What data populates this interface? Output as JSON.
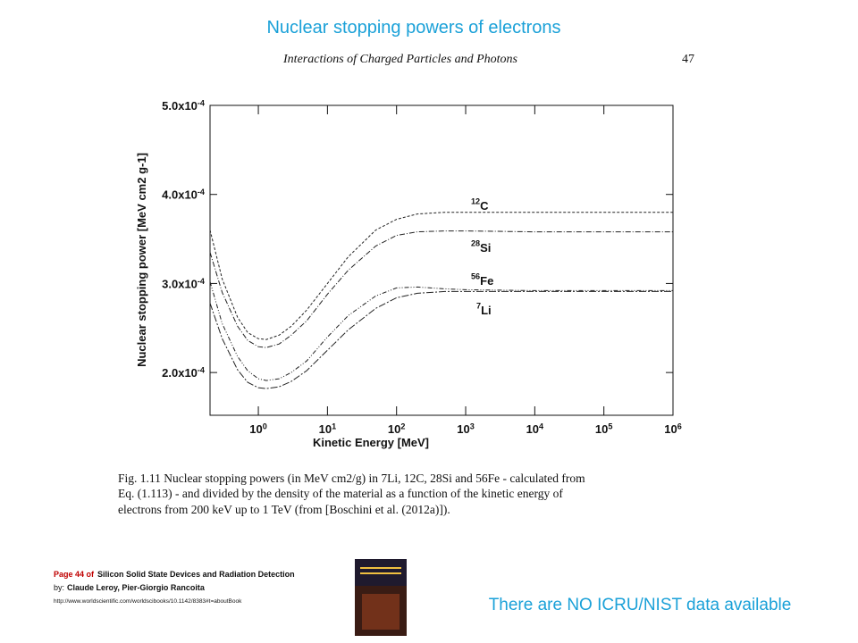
{
  "slide": {
    "title": "Nuclear stopping powers  of electrons",
    "running_head": "Interactions of Charged Particles and Photons",
    "page_number": "47",
    "caption": [
      "Fig. 1.11   Nuclear stopping powers (in MeV cm2/g) in 7Li, 12C, 28Si and 56Fe - calculated from",
      "Eq. (1.113) - and divided by the density of the material as a function of the kinetic energy of",
      "electrons from 200 keV up to 1 TeV (from [Boschini et al. (2012a)])."
    ],
    "source_page": "Page 44 of",
    "source_book": "Silicon Solid State Devices and Radiation Detection",
    "by_label": "by:",
    "authors": "Claude Leroy, Pier-Giorgio Rancoita",
    "url": "http://www.worldscientific.com/worldscibooks/10.1142/8383#t=aboutBook",
    "note": "There are NO ICRU/NIST data available"
  },
  "chart_data": {
    "type": "line",
    "xlabel": "Kinetic Energy   [MeV]",
    "ylabel": "Nuclear stopping power  [MeV cm2 g-1]",
    "x": [
      0.2,
      0.3,
      0.5,
      0.7,
      1,
      1.3,
      2,
      3,
      5,
      10,
      20,
      50,
      100,
      200,
      500,
      1000,
      10000,
      100000,
      1000000
    ],
    "xscale": "log",
    "xlim": [
      0.2,
      1000000
    ],
    "xticks": [
      {
        "value": 1,
        "label": "100"
      },
      {
        "value": 10,
        "label": "101"
      },
      {
        "value": 100,
        "label": "102"
      },
      {
        "value": 1000,
        "label": "103"
      },
      {
        "value": 10000,
        "label": "104"
      },
      {
        "value": 100000,
        "label": "105"
      },
      {
        "value": 1000000,
        "label": "106"
      }
    ],
    "ylim": [
      0.000152,
      0.0005
    ],
    "yticks": [
      {
        "value": 0.0002,
        "label": "2.0x10-4"
      },
      {
        "value": 0.0003,
        "label": "3.0x10-4"
      },
      {
        "value": 0.0004,
        "label": "4.0x10-4"
      },
      {
        "value": 0.0005,
        "label": "5.0x10-4"
      }
    ],
    "series": [
      {
        "name": "12C",
        "color": "#222222",
        "values": [
          0.00036,
          0.000305,
          0.000262,
          0.000245,
          0.000238,
          0.000237,
          0.000242,
          0.000252,
          0.00027,
          0.0003,
          0.00033,
          0.00036,
          0.000372,
          0.000378,
          0.00038,
          0.00038,
          0.00038,
          0.00038,
          0.00038
        ]
      },
      {
        "name": "28Si",
        "color": "#222222",
        "values": [
          0.000335,
          0.00029,
          0.000252,
          0.000236,
          0.000229,
          0.000228,
          0.000232,
          0.000242,
          0.000258,
          0.000288,
          0.000315,
          0.000342,
          0.000354,
          0.000358,
          0.000359,
          0.000359,
          0.000358,
          0.000358,
          0.000358
        ]
      },
      {
        "name": "56Fe",
        "color": "#222222",
        "values": [
          0.000302,
          0.000255,
          0.000218,
          0.000202,
          0.000193,
          0.000191,
          0.000193,
          0.0002,
          0.000213,
          0.00024,
          0.000264,
          0.000286,
          0.000295,
          0.000296,
          0.000294,
          0.000293,
          0.000292,
          0.000292,
          0.000292
        ]
      },
      {
        "name": "7Li",
        "color": "#222222",
        "values": [
          0.000278,
          0.000238,
          0.000203,
          0.000189,
          0.000183,
          0.000182,
          0.000184,
          0.00019,
          0.000202,
          0.000225,
          0.000248,
          0.000272,
          0.000284,
          0.000289,
          0.000291,
          0.000291,
          0.000291,
          0.000291,
          0.000291
        ]
      }
    ]
  }
}
